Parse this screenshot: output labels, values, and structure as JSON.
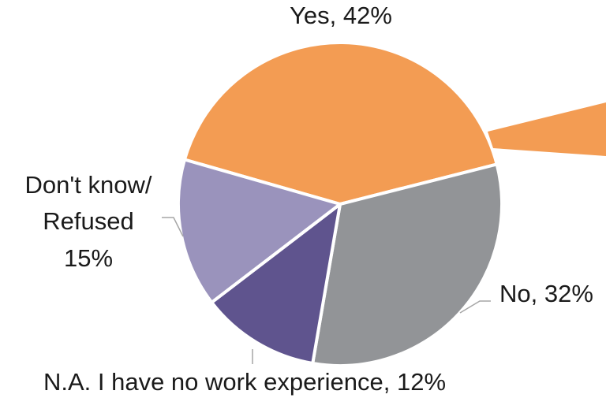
{
  "chart_data": {
    "type": "pie",
    "title": "",
    "slices": [
      {
        "label": "Yes",
        "value": 42,
        "display": "Yes, 42%",
        "color": "#F39C53"
      },
      {
        "label": "No",
        "value": 32,
        "display": "No, 32%",
        "color": "#929497"
      },
      {
        "label": "N.A. I have no work experience",
        "value": 12,
        "display": "N.A. I have no work experience, 12%",
        "color": "#5F548E"
      },
      {
        "label": "Don't know/ Refused",
        "value": 15,
        "display_lines": [
          "Don't know/",
          "Refused",
          "15%"
        ],
        "color": "#9A93BC"
      }
    ],
    "legend": "none",
    "data_labels": "outside"
  }
}
